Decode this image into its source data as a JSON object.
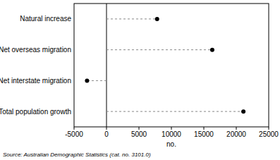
{
  "chart_data": {
    "type": "dot",
    "orientation": "horizontal",
    "categories": [
      "Natural increase",
      "Net overseas migration",
      "Net interstate migration",
      "Total population growth"
    ],
    "values": [
      7800,
      16300,
      -3000,
      21100
    ],
    "color": "#000000",
    "line_style": "dashed",
    "xlim": [
      -5000,
      25000
    ],
    "xticks": [
      -5000,
      0,
      5000,
      10000,
      15000,
      20000,
      25000
    ],
    "x_label": "no.",
    "annotations": [
      "Source: Australian Demographic Statistics (cat. no. 3101.0)"
    ],
    "grid": false
  }
}
